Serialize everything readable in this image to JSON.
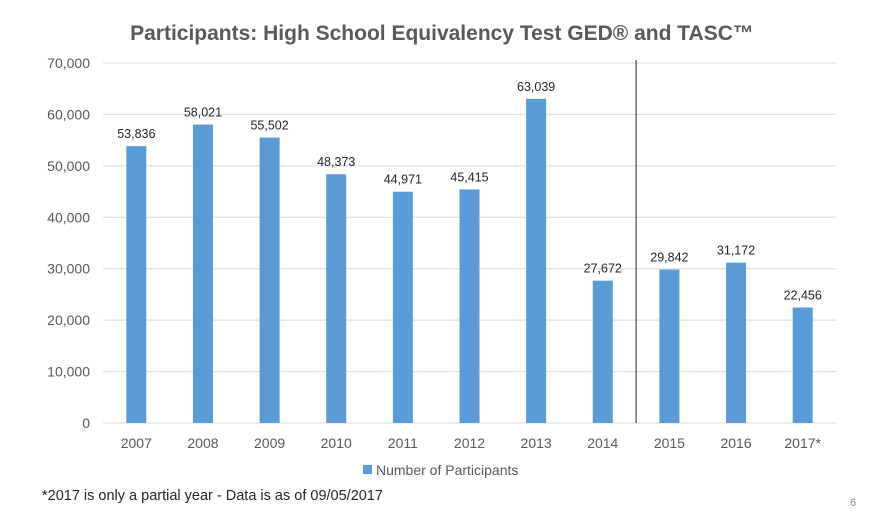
{
  "chart_data": {
    "type": "bar",
    "title": "Participants: High School Equivalency Test GED®  and TASC™",
    "categories": [
      "2007",
      "2008",
      "2009",
      "2010",
      "2011",
      "2012",
      "2013",
      "2014",
      "2015",
      "2016",
      "2017*"
    ],
    "series": [
      {
        "name": "Number of Participants",
        "values": [
          53836,
          58021,
          55502,
          48373,
          44971,
          45415,
          63039,
          27672,
          29842,
          31172,
          22456
        ],
        "labels": [
          "53,836",
          "58,021",
          "55,502",
          "48,373",
          "44,971",
          "45,415",
          "63,039",
          "27,672",
          "29,842",
          "31,172",
          "22,456"
        ],
        "color": "#5B9BD5"
      }
    ],
    "ylim": [
      0,
      70000
    ],
    "yticks": [
      0,
      10000,
      20000,
      30000,
      40000,
      50000,
      60000,
      70000
    ],
    "ytick_labels": [
      "0",
      "10,000",
      "20,000",
      "30,000",
      "40,000",
      "50,000",
      "60,000",
      "70,000"
    ],
    "grid": true,
    "legend": "bottom-center",
    "divider_after_category": "2014",
    "gridline_color": "#D9D9D9"
  },
  "footnote": "*2017 is only a partial year - Data is as of 09/05/2017",
  "page_number": "6"
}
